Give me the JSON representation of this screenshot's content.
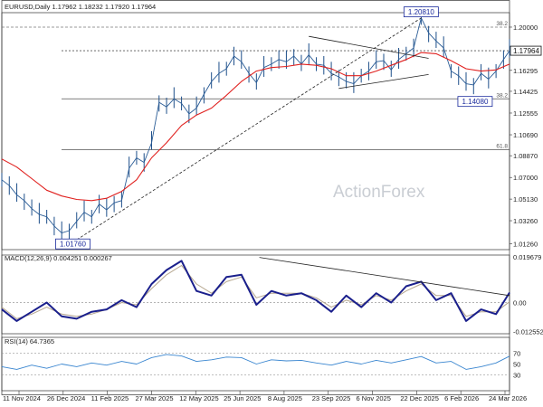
{
  "chart_data": [
    {
      "type": "line",
      "panel": "price",
      "title": "EURUSD,Daily",
      "ohlc_text": "1.17962 1.18232 1.17920 1.17964",
      "watermark": "ActionForex",
      "y_ticks": [
        1.0126,
        1.0326,
        1.0513,
        1.07,
        1.0888,
        1.1069,
        1.1257,
        1.1445,
        1.1626,
        1.1796,
        1.2
      ],
      "y_tick_labels": [
        "1.01260",
        "1.03260",
        "1.05130",
        "1.07000",
        "1.08870",
        "1.10690",
        "1.12555",
        "1.14425",
        "1.16295",
        "1.17964",
        "1.20000"
      ],
      "ylim": [
        1.0076,
        1.2125
      ],
      "x_ticks": [
        "11 Nov 2024",
        "26 Dec 2024",
        "11 Feb 2025",
        "27 Mar 2025",
        "12 May 2025",
        "25 Jun 2025",
        "8 Aug 2025",
        "23 Sep 2025",
        "6 Nov 2025",
        "22 Dec 2025",
        "6 Feb 2026",
        "24 Mar 2026"
      ],
      "price_x": [
        0,
        5,
        10,
        15,
        20,
        25,
        30,
        35,
        40,
        45,
        50,
        55,
        60,
        65,
        70,
        75,
        80,
        85,
        90,
        95,
        100,
        105,
        110,
        115,
        120,
        125,
        130,
        135,
        140,
        145,
        150,
        155,
        160,
        165,
        170,
        175,
        180,
        185,
        190,
        195,
        200,
        205,
        210,
        215,
        220,
        225,
        230,
        235,
        240,
        245,
        250,
        255,
        260,
        265,
        270,
        275,
        280,
        285,
        290,
        295,
        300,
        305,
        310,
        315,
        320,
        325,
        330,
        335,
        339
      ],
      "price_close": [
        1.068,
        1.063,
        1.055,
        1.05,
        1.043,
        1.038,
        1.036,
        1.028,
        1.022,
        1.024,
        1.032,
        1.04,
        1.036,
        1.047,
        1.042,
        1.048,
        1.05,
        1.078,
        1.087,
        1.083,
        1.1,
        1.135,
        1.131,
        1.138,
        1.134,
        1.125,
        1.13,
        1.142,
        1.153,
        1.16,
        1.164,
        1.175,
        1.17,
        1.16,
        1.152,
        1.165,
        1.168,
        1.172,
        1.17,
        1.175,
        1.168,
        1.176,
        1.168,
        1.167,
        1.16,
        1.157,
        1.153,
        1.151,
        1.158,
        1.162,
        1.17,
        1.171,
        1.163,
        1.172,
        1.177,
        1.182,
        1.208,
        1.195,
        1.188,
        1.182,
        1.162,
        1.158,
        1.151,
        1.15,
        1.16,
        1.155,
        1.162,
        1.172,
        1.1796
      ],
      "ma": {
        "name": "",
        "color": "#e0201e",
        "x": [
          0,
          10,
          20,
          30,
          40,
          50,
          60,
          70,
          80,
          90,
          100,
          110,
          120,
          130,
          140,
          150,
          160,
          170,
          180,
          190,
          200,
          210,
          220,
          230,
          240,
          250,
          260,
          270,
          280,
          290,
          300,
          310,
          320,
          330,
          339
        ],
        "y": [
          1.086,
          1.079,
          1.069,
          1.059,
          1.054,
          1.051,
          1.05,
          1.052,
          1.058,
          1.068,
          1.087,
          1.1,
          1.115,
          1.124,
          1.13,
          1.141,
          1.153,
          1.162,
          1.165,
          1.166,
          1.168,
          1.167,
          1.164,
          1.158,
          1.158,
          1.162,
          1.167,
          1.172,
          1.178,
          1.177,
          1.171,
          1.164,
          1.162,
          1.163,
          1.168
        ]
      },
      "annotations": [
        {
          "text": "1.20810",
          "at": [
            280,
            1.2081
          ],
          "kind": "high"
        },
        {
          "text": "1.01760",
          "at": [
            48,
            1.0176
          ],
          "kind": "low"
        },
        {
          "text": "1.14080",
          "at": [
            316,
            1.1408
          ],
          "kind": "low"
        },
        {
          "text": "38.2",
          "at": [
            339,
            1.2
          ],
          "kind": "fib"
        },
        {
          "text": "38.2",
          "at": [
            339,
            1.138
          ],
          "kind": "fib"
        },
        {
          "text": "61.8",
          "at": [
            339,
            1.094
          ],
          "kind": "fib"
        }
      ],
      "h_lines": [
        1.2,
        1.1796,
        1.138,
        1.094
      ],
      "trendlines": [
        {
          "x": [
            45,
            285
          ],
          "y": [
            1.012,
            1.212
          ],
          "style": "dashed"
        },
        {
          "x": [
            205,
            285
          ],
          "y": [
            1.192,
            1.173
          ],
          "style": "solid"
        },
        {
          "x": [
            225,
            285
          ],
          "y": [
            1.147,
            1.159
          ],
          "style": "solid"
        }
      ],
      "last_value": "1.17964"
    },
    {
      "type": "line",
      "panel": "macd",
      "title": "MACD(12,26,9) 0.004251 0.000267",
      "y_ticks": [
        0.019679,
        0.0,
        -0.012552
      ],
      "y_tick_labels": [
        "0.019679",
        "0.00",
        "-0.012552"
      ],
      "ylim": [
        -0.0135,
        0.0205
      ],
      "x": [
        0,
        10,
        20,
        30,
        40,
        50,
        60,
        70,
        80,
        90,
        100,
        110,
        120,
        130,
        140,
        150,
        160,
        170,
        180,
        190,
        200,
        210,
        220,
        230,
        240,
        250,
        260,
        270,
        280,
        290,
        300,
        310,
        320,
        330,
        339
      ],
      "series": [
        {
          "name": "",
          "color": "#1a1f8c",
          "values": [
            -0.003,
            -0.008,
            -0.004,
            0.0,
            -0.006,
            -0.007,
            -0.004,
            -0.003,
            0.001,
            -0.002,
            0.008,
            0.014,
            0.018,
            0.005,
            0.003,
            0.011,
            0.012,
            -0.001,
            0.005,
            0.003,
            0.004,
            0.001,
            -0.004,
            0.003,
            -0.002,
            0.004,
            0.0,
            0.007,
            0.009,
            0.001,
            0.004,
            -0.008,
            -0.003,
            -0.005,
            0.0043
          ]
        },
        {
          "name": "",
          "color": "#b5a68e",
          "values": [
            -0.002,
            -0.007,
            -0.005,
            -0.002,
            -0.005,
            -0.006,
            -0.005,
            -0.003,
            0.0,
            -0.001,
            0.006,
            0.012,
            0.016,
            0.008,
            0.004,
            0.009,
            0.011,
            0.002,
            0.004,
            0.004,
            0.004,
            0.002,
            -0.002,
            0.001,
            -0.001,
            0.003,
            0.001,
            0.005,
            0.008,
            0.003,
            0.003,
            -0.006,
            -0.004,
            -0.004,
            0.0003
          ]
        }
      ],
      "trendline": {
        "x": [
          172,
          339
        ],
        "y": [
          0.0195,
          0.003
        ]
      }
    },
    {
      "type": "line",
      "panel": "rsi",
      "title": "RSI(14) 64.7365",
      "y_ticks": [
        70,
        50,
        30
      ],
      "y_tick_labels": [
        "70",
        "50",
        "30"
      ],
      "ylim": [
        0,
        100
      ],
      "x": [
        0,
        10,
        20,
        30,
        40,
        50,
        60,
        70,
        80,
        90,
        100,
        110,
        120,
        130,
        140,
        150,
        160,
        170,
        180,
        190,
        200,
        210,
        220,
        230,
        240,
        250,
        260,
        270,
        280,
        290,
        300,
        310,
        320,
        330,
        339
      ],
      "series": [
        {
          "name": "",
          "color": "#3a86d0",
          "values": [
            45,
            40,
            48,
            42,
            50,
            45,
            52,
            48,
            55,
            50,
            62,
            68,
            65,
            55,
            58,
            63,
            62,
            50,
            58,
            56,
            57,
            52,
            48,
            55,
            50,
            57,
            52,
            58,
            64,
            52,
            55,
            40,
            45,
            52,
            64.7
          ]
        }
      ]
    }
  ]
}
